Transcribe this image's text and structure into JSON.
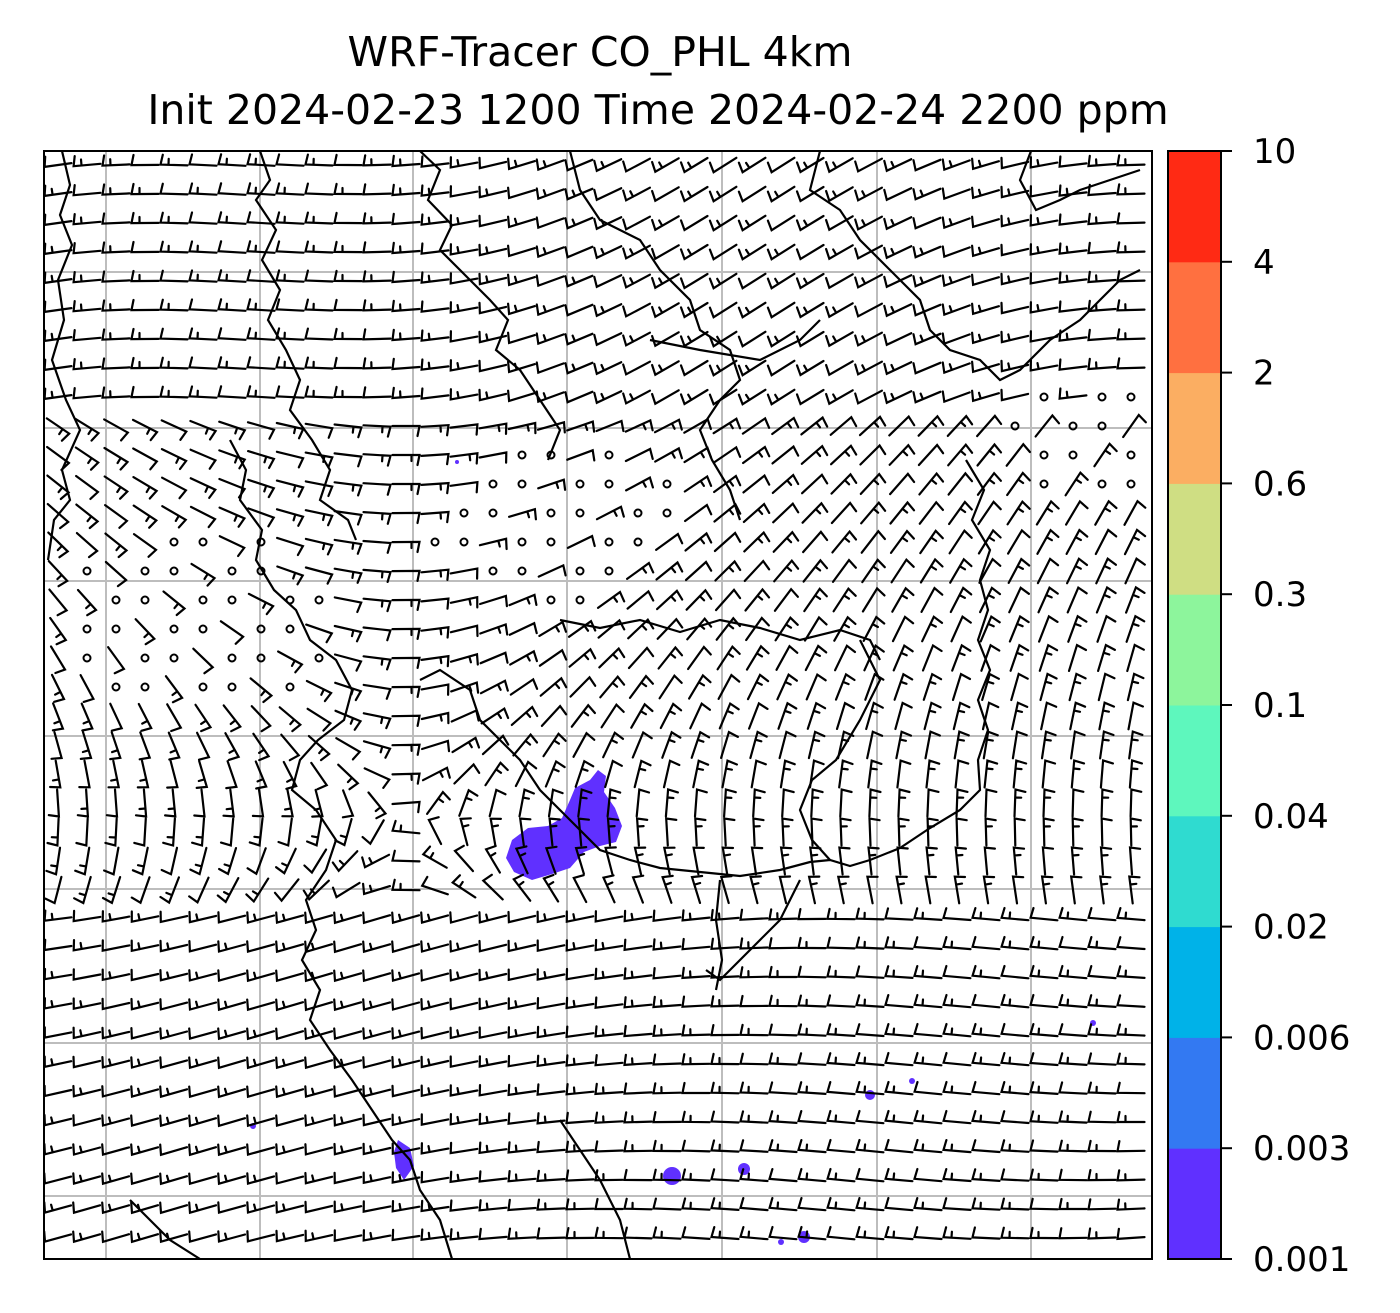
{
  "title": {
    "line1": "WRF-Tracer CO_PHL 4km",
    "line2": "Init 2024-02-23 1200 Time 2024-02-24 2200 ppm"
  },
  "colorbar": {
    "levels": [
      "0.001",
      "0.003",
      "0.006",
      "0.02",
      "0.04",
      "0.1",
      "0.3",
      "0.6",
      "2",
      "4",
      "10"
    ],
    "colors": [
      "#6030ff",
      "#3379f2",
      "#00b2e8",
      "#2fdbd0",
      "#5ef7bd",
      "#8df59c",
      "#cfde83",
      "#fbae62",
      "#ff7040",
      "#ff2a14"
    ]
  },
  "map": {
    "grid_color": "#bdbdbd",
    "plume_color": "#6030ff",
    "barb_color": "#000000"
  }
}
